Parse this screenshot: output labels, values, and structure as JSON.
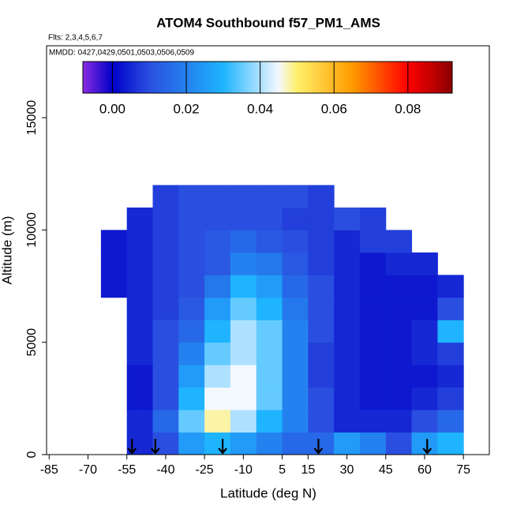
{
  "chart_data": {
    "type": "heatmap",
    "title": "ATOM4 Southbound f57_PM1_AMS",
    "subtitle": "Flts: 2,3,4,5,6,7",
    "annotation": "MMDD: 0427,0429,0501,0503,0506,0509",
    "x_label": "Latitude (deg N)",
    "y_label": "Altitude (m)",
    "xlim": [
      -86,
      85
    ],
    "ylim": [
      0,
      18200
    ],
    "xticks": [
      -85,
      -70,
      -55,
      -40,
      -25,
      -10,
      5,
      15,
      30,
      45,
      60,
      75
    ],
    "yticks": [
      0,
      5000,
      10000,
      15000
    ],
    "x_bins": [
      -65,
      -55,
      -45,
      -35,
      -25,
      -15,
      -5,
      5,
      15,
      25,
      35,
      45,
      55,
      65,
      75
    ],
    "y_bins": [
      0,
      1000,
      2000,
      3000,
      4000,
      5000,
      6000,
      7000,
      8000,
      9000,
      10000,
      11000,
      12000
    ],
    "z": [
      [
        null,
        0.005,
        0.01,
        0.025,
        0.03,
        0.025,
        0.02,
        0.015,
        0.015,
        0.025,
        0.02,
        0.01,
        0.025,
        0.03
      ],
      [
        null,
        0.005,
        0.015,
        0.035,
        0.048,
        0.04,
        0.03,
        0.02,
        0.01,
        0.005,
        0.005,
        0.005,
        0.01,
        0.015
      ],
      [
        null,
        0.003,
        0.01,
        0.03,
        0.045,
        0.045,
        0.035,
        0.02,
        0.01,
        0.005,
        0.003,
        0.003,
        0.005,
        0.008
      ],
      [
        null,
        0.003,
        0.01,
        0.025,
        0.04,
        0.045,
        0.035,
        0.02,
        0.008,
        0.005,
        0.003,
        0.003,
        0.003,
        0.005
      ],
      [
        null,
        0.005,
        0.01,
        0.02,
        0.035,
        0.04,
        0.035,
        0.02,
        0.008,
        0.005,
        0.003,
        0.003,
        0.005,
        0.008
      ],
      [
        null,
        0.005,
        0.01,
        0.015,
        0.03,
        0.04,
        0.035,
        0.02,
        0.01,
        0.005,
        0.003,
        0.003,
        0.005,
        0.03
      ],
      [
        null,
        0.005,
        0.008,
        0.012,
        0.025,
        0.035,
        0.03,
        0.018,
        0.01,
        0.005,
        0.003,
        0.003,
        0.003,
        0.01
      ],
      [
        0.003,
        0.005,
        0.008,
        0.01,
        0.018,
        0.03,
        0.025,
        0.015,
        0.01,
        0.005,
        0.003,
        0.003,
        0.003,
        0.005
      ],
      [
        0.003,
        0.005,
        0.008,
        0.01,
        0.012,
        0.02,
        0.018,
        0.012,
        0.008,
        0.005,
        0.003,
        0.005,
        0.005,
        null
      ],
      [
        0.003,
        0.005,
        0.008,
        0.01,
        0.012,
        0.015,
        0.012,
        0.01,
        0.008,
        0.005,
        0.008,
        0.008,
        null,
        null
      ],
      [
        null,
        0.005,
        0.008,
        0.01,
        0.01,
        0.01,
        0.01,
        0.008,
        0.008,
        0.01,
        0.008,
        null,
        null,
        null
      ],
      [
        null,
        null,
        0.008,
        0.01,
        0.01,
        0.01,
        0.01,
        0.01,
        0.008,
        null,
        null,
        null,
        null,
        null
      ]
    ],
    "colorbar_lim": [
      -0.008,
      0.092
    ],
    "colorbar_ticks": [
      {
        "value": 0,
        "label": "0.00"
      },
      {
        "value": 0.02,
        "label": "0.02"
      },
      {
        "value": 0.04,
        "label": "0.04"
      },
      {
        "value": 0.06,
        "label": "0.06"
      },
      {
        "value": 0.08,
        "label": "0.08"
      }
    ],
    "colorscale": [
      [
        -0.008,
        "#8a2be2"
      ],
      [
        0,
        "#0000c8"
      ],
      [
        0.01,
        "#2a4fe0"
      ],
      [
        0.03,
        "#1eb4ff"
      ],
      [
        0.045,
        "#f4f8ff"
      ],
      [
        0.05,
        "#fff06a"
      ],
      [
        0.065,
        "#ff9a00"
      ],
      [
        0.08,
        "#ff0000"
      ],
      [
        0.092,
        "#8b0000"
      ]
    ],
    "arrows": [
      -53,
      -44,
      -18,
      19,
      61
    ]
  }
}
